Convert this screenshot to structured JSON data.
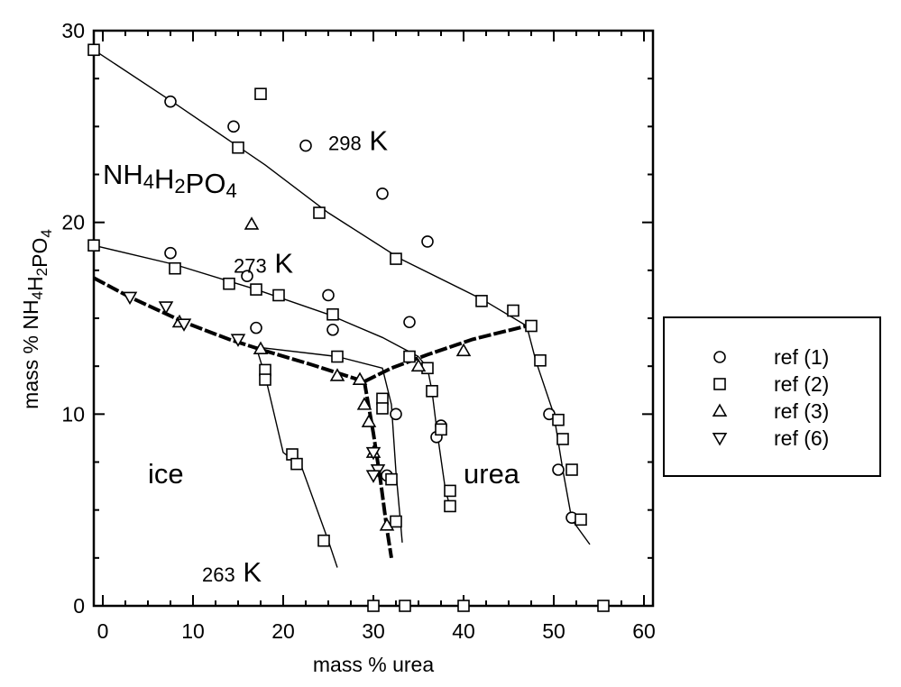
{
  "chart_data": {
    "type": "scatter",
    "title": "",
    "xlabel": "mass % urea",
    "ylabel": "mass % NH4H2PO4",
    "xlim": [
      -1,
      61
    ],
    "ylim": [
      0,
      30
    ],
    "x_ticks": [
      "0",
      "10",
      "20",
      "30",
      "40",
      "50",
      "60"
    ],
    "x_tick_values": [
      0,
      10,
      20,
      30,
      40,
      50,
      60
    ],
    "y_ticks": [
      "0",
      "10",
      "20",
      "30"
    ],
    "y_tick_values": [
      0,
      10,
      20,
      30
    ],
    "grid": false,
    "legend_position": "right",
    "annotations": [
      {
        "text": "298 K",
        "x": 25,
        "y": 24
      },
      {
        "text": "NH4H2PO4",
        "x": 0,
        "y": 22
      },
      {
        "text": "273 K",
        "x": 14.5,
        "y": 17.6
      },
      {
        "text": "ice",
        "x": 5,
        "y": 6.4
      },
      {
        "text": "urea",
        "x": 40,
        "y": 6.4
      },
      {
        "text": "263 K",
        "x": 11,
        "y": 1.5
      }
    ],
    "curves": [
      {
        "name": "298 K solubility (ice/urea side)",
        "points": [
          [
            -1,
            29
          ],
          [
            8,
            26.2
          ],
          [
            18,
            23
          ],
          [
            25,
            20.5
          ],
          [
            33,
            18.1
          ],
          [
            42,
            16
          ],
          [
            47,
            14.6
          ]
        ]
      },
      {
        "name": "273 K solubility",
        "points": [
          [
            -1,
            18.8
          ],
          [
            8,
            17.8
          ],
          [
            17,
            16.5
          ],
          [
            25,
            15.2
          ],
          [
            31,
            14
          ],
          [
            35,
            13
          ]
        ]
      },
      {
        "name": "273 K urea branch",
        "points": [
          [
            35,
            13
          ],
          [
            36,
            12.4
          ],
          [
            36.5,
            11.2
          ],
          [
            37,
            9.3
          ],
          [
            38,
            6
          ],
          [
            38.5,
            5.2
          ]
        ]
      },
      {
        "name": "263 K ice branch",
        "points": [
          [
            17,
            13.5
          ],
          [
            18,
            12
          ],
          [
            20,
            8
          ],
          [
            22,
            7.3
          ],
          [
            25,
            3.4
          ],
          [
            26,
            2
          ]
        ]
      },
      {
        "name": "263 K urea branch",
        "points": [
          [
            17,
            13.5
          ],
          [
            26,
            13
          ],
          [
            31,
            12.4
          ],
          [
            32,
            10.5
          ],
          [
            32.5,
            7
          ],
          [
            33,
            4.4
          ],
          [
            33.2,
            3.3
          ]
        ]
      },
      {
        "name": "298 K urea branch",
        "points": [
          [
            47,
            14.6
          ],
          [
            48,
            12.8
          ],
          [
            50,
            10
          ],
          [
            51,
            7.1
          ],
          [
            52,
            4.5
          ],
          [
            54,
            3.2
          ]
        ]
      }
    ],
    "thick_curves": [
      {
        "name": "ice eutectic line",
        "points": [
          [
            -1,
            17.1
          ],
          [
            3,
            16.1
          ],
          [
            9,
            14.8
          ],
          [
            14,
            13.9
          ],
          [
            18,
            13.3
          ],
          [
            23,
            12.6
          ],
          [
            27,
            12
          ],
          [
            29,
            11.7
          ]
        ]
      },
      {
        "name": "urea eutectic line",
        "points": [
          [
            29,
            11.7
          ],
          [
            32,
            12.4
          ],
          [
            36,
            13.1
          ],
          [
            41,
            13.9
          ],
          [
            47,
            14.6
          ]
        ]
      },
      {
        "name": "ice-urea eutectic line",
        "points": [
          [
            29,
            11.7
          ],
          [
            30,
            9
          ],
          [
            30.8,
            6.5
          ],
          [
            31.5,
            4
          ],
          [
            32,
            2.5
          ]
        ]
      }
    ],
    "series": [
      {
        "name": "ref (1)",
        "marker": "circle",
        "points": [
          [
            7.5,
            26.3
          ],
          [
            14.5,
            25
          ],
          [
            22.5,
            24
          ],
          [
            31,
            21.5
          ],
          [
            36,
            19
          ],
          [
            7.5,
            18.4
          ],
          [
            16,
            17.2
          ],
          [
            25,
            16.2
          ],
          [
            25.5,
            14.4
          ],
          [
            17,
            14.5
          ],
          [
            34,
            14.8
          ],
          [
            32.5,
            10
          ],
          [
            31.5,
            6.8
          ],
          [
            37.5,
            9.4
          ],
          [
            37,
            8.8
          ],
          [
            49.5,
            10
          ],
          [
            50.5,
            7.1
          ],
          [
            52,
            4.6
          ]
        ]
      },
      {
        "name": "ref (2)",
        "marker": "square",
        "points": [
          [
            -1,
            29
          ],
          [
            17.5,
            26.7
          ],
          [
            15,
            23.9
          ],
          [
            24,
            20.5
          ],
          [
            32.5,
            18.1
          ],
          [
            42,
            15.9
          ],
          [
            45.5,
            15.4
          ],
          [
            47.5,
            14.6
          ],
          [
            -1,
            18.8
          ],
          [
            8,
            17.6
          ],
          [
            14,
            16.8
          ],
          [
            17,
            16.5
          ],
          [
            19.5,
            16.2
          ],
          [
            25.5,
            15.2
          ],
          [
            34,
            13
          ],
          [
            36,
            12.4
          ],
          [
            36.5,
            11.2
          ],
          [
            37.5,
            9.2
          ],
          [
            38.5,
            6
          ],
          [
            38.5,
            5.2
          ],
          [
            26,
            13
          ],
          [
            18,
            12.3
          ],
          [
            18,
            11.8
          ],
          [
            21,
            7.9
          ],
          [
            21.5,
            7.4
          ],
          [
            24.5,
            3.4
          ],
          [
            31,
            10.8
          ],
          [
            31,
            10.3
          ],
          [
            32,
            6.6
          ],
          [
            32.5,
            4.4
          ],
          [
            48.5,
            12.8
          ],
          [
            50.5,
            9.7
          ],
          [
            51,
            8.7
          ],
          [
            52,
            7.1
          ],
          [
            53,
            4.5
          ],
          [
            30,
            0
          ],
          [
            33.5,
            0
          ],
          [
            40,
            0
          ],
          [
            55.5,
            0
          ]
        ]
      },
      {
        "name": "ref (3)",
        "marker": "triangle-up",
        "points": [
          [
            16.5,
            19.9
          ],
          [
            8.5,
            14.8
          ],
          [
            17.5,
            13.4
          ],
          [
            26,
            12
          ],
          [
            28.5,
            11.8
          ],
          [
            29,
            10.5
          ],
          [
            29.5,
            9.6
          ],
          [
            30,
            8
          ],
          [
            31.5,
            4.2
          ],
          [
            35,
            12.5
          ],
          [
            40,
            13.3
          ]
        ]
      },
      {
        "name": "ref (6)",
        "marker": "triangle-down",
        "points": [
          [
            3,
            16.1
          ],
          [
            7,
            15.6
          ],
          [
            9,
            14.7
          ],
          [
            15,
            13.9
          ],
          [
            30,
            8
          ],
          [
            30.5,
            7.1
          ],
          [
            30,
            6.8
          ]
        ]
      }
    ],
    "legend_entries": [
      "ref (1)",
      "ref (2)",
      "ref (3)",
      "ref (6)"
    ]
  }
}
